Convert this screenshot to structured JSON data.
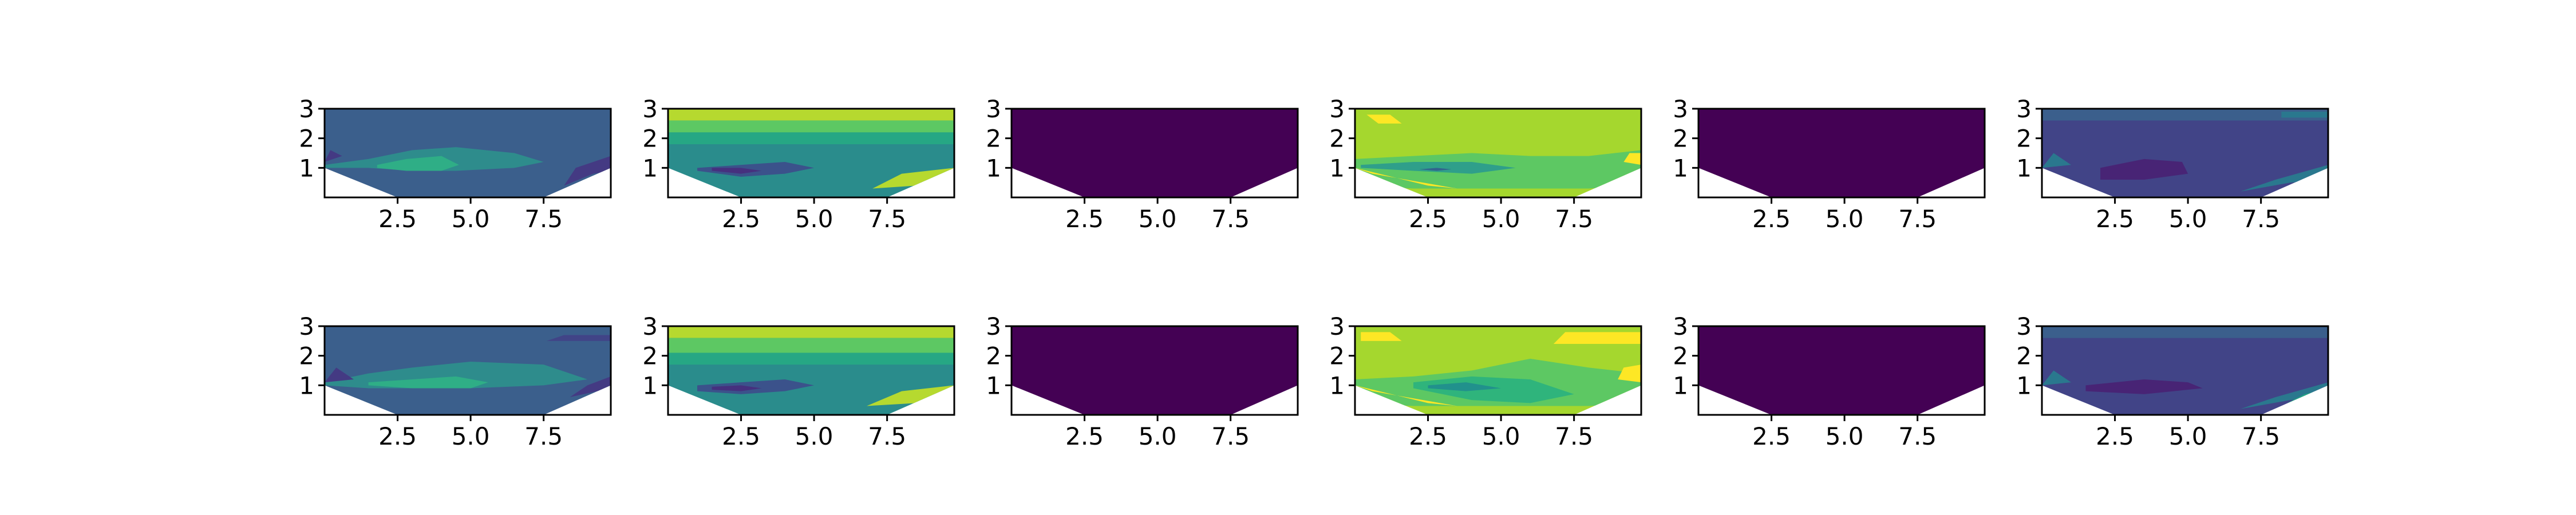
{
  "chart_data": {
    "type": "contour",
    "layout": {
      "rows": 2,
      "cols": 6
    },
    "colormap": [
      "#440154",
      "#414487",
      "#2a788e",
      "#22a884",
      "#7ad151",
      "#a6d820",
      "#fde725"
    ],
    "panels": [
      {
        "row": 0,
        "col": 0,
        "fill": "#3b5f8c",
        "bands": [
          {
            "x": [
              0,
              1.5,
              3,
              4.5,
              6.5,
              7.5,
              6.5,
              4.5,
              3,
              1.5,
              0
            ],
            "ylo": [
              1.0,
              1.0,
              0.9,
              0.9,
              1.0,
              1.2,
              1.5,
              1.7,
              1.6,
              1.3,
              1.1
            ],
            "color": "#2e8c8c"
          },
          {
            "x": [
              1.8,
              2.8,
              4.0,
              4.6,
              4.0,
              2.8,
              1.8
            ],
            "ylo": [
              1.0,
              0.9,
              0.9,
              1.1,
              1.4,
              1.3,
              1.1
            ],
            "color": "#2fae86"
          },
          {
            "x": [
              8.2,
              9.2,
              9.8,
              9.8,
              8.6
            ],
            "ylo": [
              0.4,
              0.8,
              0.9,
              1.4,
              1.0
            ],
            "color": "#443a83"
          },
          {
            "x": [
              0,
              0.6,
              0.2
            ],
            "ylo": [
              1.2,
              1.4,
              1.6
            ],
            "color": "#443a83"
          }
        ]
      },
      {
        "row": 0,
        "col": 1,
        "fill": "#2a8c8c",
        "bands": [
          {
            "x": [
              0,
              9.8,
              9.8,
              0
            ],
            "ylo": [
              2.6,
              2.6,
              3.0,
              3.0
            ],
            "color": "#b6d92f"
          },
          {
            "x": [
              0,
              9.8,
              9.8,
              0
            ],
            "ylo": [
              2.2,
              2.2,
              2.6,
              2.6
            ],
            "color": "#5dc863"
          },
          {
            "x": [
              0,
              9.8,
              9.8,
              0
            ],
            "ylo": [
              1.8,
              1.8,
              2.2,
              2.2
            ],
            "color": "#26a784"
          },
          {
            "x": [
              1.0,
              2.5,
              4.0,
              5.0,
              4.0,
              2.5,
              1.0
            ],
            "ylo": [
              0.9,
              0.7,
              0.8,
              1.0,
              1.2,
              1.1,
              1.0
            ],
            "color": "#3b528b"
          },
          {
            "x": [
              1.5,
              2.5,
              3.2,
              2.5,
              1.5
            ],
            "ylo": [
              0.9,
              0.8,
              0.9,
              1.0,
              1.0
            ],
            "color": "#46307e"
          },
          {
            "x": [
              7.0,
              8.5,
              9.8,
              9.8,
              8.0
            ],
            "ylo": [
              0.3,
              0.4,
              0.6,
              1.0,
              0.8
            ],
            "color": "#b6d92f"
          },
          {
            "x": [
              8.6,
              9.5,
              9.8,
              9.0
            ],
            "ylo": [
              0.2,
              0.4,
              0.7,
              0.6
            ],
            "color": "#fde725"
          }
        ]
      },
      {
        "row": 0,
        "col": 2,
        "fill": "#440154",
        "bands": []
      },
      {
        "row": 0,
        "col": 3,
        "fill": "#a5d72e",
        "bands": [
          {
            "x": [
              0,
              2.0,
              4.0,
              6.0,
              8.0,
              9.8,
              9.8,
              8.0,
              6.0,
              4.0,
              2.0,
              0
            ],
            "ylo": [
              0.4,
              0.3,
              0.3,
              0.3,
              0.3,
              0.4,
              1.6,
              1.4,
              1.4,
              1.5,
              1.4,
              1.3
            ],
            "color": "#5dc863"
          },
          {
            "x": [
              0.2,
              2.0,
              4.0,
              5.5,
              4.0,
              2.0,
              0.2
            ],
            "ylo": [
              1.0,
              0.9,
              0.8,
              1.0,
              1.2,
              1.2,
              1.1
            ],
            "color": "#2f9f8a"
          },
          {
            "x": [
              2.2,
              2.8,
              3.3,
              2.8
            ],
            "ylo": [
              0.95,
              0.9,
              0.95,
              1.0
            ],
            "color": "#33638d"
          },
          {
            "x": [
              0,
              2.5,
              3.5,
              0.6
            ],
            "ylo": [
              1.0,
              0.4,
              0.3,
              0.8
            ],
            "color": "#fde725"
          },
          {
            "x": [
              0.8,
              1.6,
              1.2,
              0.4
            ],
            "ylo": [
              2.5,
              2.5,
              2.8,
              2.8
            ],
            "color": "#fde725"
          },
          {
            "x": [
              9.2,
              9.8,
              9.8,
              9.4
            ],
            "ylo": [
              1.2,
              1.1,
              1.5,
              1.5
            ],
            "color": "#fde725"
          }
        ]
      },
      {
        "row": 0,
        "col": 4,
        "fill": "#440154",
        "bands": []
      },
      {
        "row": 0,
        "col": 5,
        "fill": "#414487",
        "bands": [
          {
            "x": [
              0,
              9.8,
              9.8,
              0
            ],
            "ylo": [
              2.6,
              2.6,
              3.0,
              3.0
            ],
            "color": "#3b5f8c"
          },
          {
            "x": [
              2.0,
              3.5,
              5.0,
              4.8,
              3.5,
              2.0
            ],
            "ylo": [
              0.6,
              0.6,
              0.8,
              1.2,
              1.3,
              1.0
            ],
            "color": "#482475"
          },
          {
            "x": [
              6.8,
              8.5,
              9.8,
              9.8,
              8.0
            ],
            "ylo": [
              0.2,
              0.5,
              0.6,
              1.1,
              0.6
            ],
            "color": "#2a788e"
          },
          {
            "x": [
              8.6,
              9.8,
              9.8,
              9.2
            ],
            "ylo": [
              0.4,
              0.6,
              0.9,
              0.7
            ],
            "color": "#22a884"
          },
          {
            "x": [
              8.2,
              9.8,
              9.8,
              8.2
            ],
            "ylo": [
              2.7,
              2.7,
              2.9,
              2.9
            ],
            "color": "#2a788e"
          },
          {
            "x": [
              0,
              1.0,
              0.4
            ],
            "ylo": [
              1.0,
              1.1,
              1.5
            ],
            "color": "#2a788e"
          }
        ]
      },
      {
        "row": 1,
        "col": 0,
        "fill": "#3b5f8c",
        "bands": [
          {
            "x": [
              0,
              1.5,
              3,
              5,
              7.5,
              9.0,
              7.5,
              5,
              3,
              1.5,
              0
            ],
            "ylo": [
              1.0,
              0.9,
              0.9,
              0.9,
              1.0,
              1.2,
              1.7,
              1.8,
              1.6,
              1.4,
              1.1
            ],
            "color": "#2e8c8c"
          },
          {
            "x": [
              1.5,
              3.0,
              5.0,
              5.6,
              4.5,
              3.0,
              1.5
            ],
            "ylo": [
              1.0,
              0.9,
              0.9,
              1.1,
              1.3,
              1.2,
              1.1
            ],
            "color": "#2fae86"
          },
          {
            "x": [
              7.6,
              9.8,
              9.8,
              8.2
            ],
            "ylo": [
              2.5,
              2.5,
              2.7,
              2.7
            ],
            "color": "#414487"
          },
          {
            "x": [
              8.4,
              9.8,
              9.8,
              9.0
            ],
            "ylo": [
              0.6,
              0.9,
              1.3,
              1.0
            ],
            "color": "#443a83"
          },
          {
            "x": [
              0,
              1.0,
              0.4
            ],
            "ylo": [
              1.1,
              1.2,
              1.6
            ],
            "color": "#443a83"
          }
        ]
      },
      {
        "row": 1,
        "col": 1,
        "fill": "#2a8c8c",
        "bands": [
          {
            "x": [
              0,
              9.8,
              9.8,
              0
            ],
            "ylo": [
              2.6,
              2.6,
              3.0,
              3.0
            ],
            "color": "#b6d92f"
          },
          {
            "x": [
              0,
              9.8,
              9.8,
              0
            ],
            "ylo": [
              2.1,
              2.1,
              2.6,
              2.6
            ],
            "color": "#5dc863"
          },
          {
            "x": [
              0,
              9.8,
              9.8,
              0
            ],
            "ylo": [
              1.7,
              1.7,
              2.1,
              2.1
            ],
            "color": "#26a784"
          },
          {
            "x": [
              1.0,
              2.5,
              4.0,
              5.0,
              4.0,
              2.5,
              1.0
            ],
            "ylo": [
              0.8,
              0.7,
              0.8,
              1.0,
              1.2,
              1.1,
              1.0
            ],
            "color": "#3b528b"
          },
          {
            "x": [
              1.5,
              2.5,
              3.2,
              2.5,
              1.5
            ],
            "ylo": [
              0.85,
              0.8,
              0.9,
              1.0,
              0.95
            ],
            "color": "#46307e"
          },
          {
            "x": [
              6.8,
              8.5,
              9.8,
              9.8,
              8.0
            ],
            "ylo": [
              0.3,
              0.4,
              0.6,
              1.0,
              0.8
            ],
            "color": "#b6d92f"
          },
          {
            "x": [
              8.6,
              9.5,
              9.8,
              9.0
            ],
            "ylo": [
              0.2,
              0.4,
              0.7,
              0.6
            ],
            "color": "#fde725"
          }
        ]
      },
      {
        "row": 1,
        "col": 2,
        "fill": "#440154",
        "bands": []
      },
      {
        "row": 1,
        "col": 3,
        "fill": "#a5d72e",
        "bands": [
          {
            "x": [
              0,
              2.0,
              4.0,
              6.0,
              8.0,
              9.8,
              9.8,
              8.0,
              6.0,
              4.0,
              2.0,
              0
            ],
            "ylo": [
              0.4,
              0.3,
              0.3,
              0.3,
              0.3,
              0.4,
              1.4,
              1.6,
              1.9,
              1.5,
              1.3,
              1.2
            ],
            "color": "#5dc863"
          },
          {
            "x": [
              2.0,
              4.0,
              6.0,
              7.5,
              6.0,
              4.0,
              2.0
            ],
            "ylo": [
              0.9,
              0.5,
              0.4,
              0.7,
              1.2,
              1.3,
              1.1
            ],
            "color": "#2fb47c"
          },
          {
            "x": [
              2.5,
              3.8,
              5.0,
              3.8,
              2.5
            ],
            "ylo": [
              0.9,
              0.8,
              0.9,
              1.1,
              1.0
            ],
            "color": "#21918c"
          },
          {
            "x": [
              0,
              2.5,
              3.5,
              0.6
            ],
            "ylo": [
              1.0,
              0.4,
              0.3,
              0.8
            ],
            "color": "#fde725"
          },
          {
            "x": [
              0.2,
              1.6,
              1.2,
              0.2
            ],
            "ylo": [
              2.5,
              2.5,
              2.8,
              2.8
            ],
            "color": "#fde725"
          },
          {
            "x": [
              6.8,
              9.8,
              9.8,
              7.2
            ],
            "ylo": [
              2.4,
              2.4,
              2.8,
              2.8
            ],
            "color": "#fde725"
          },
          {
            "x": [
              9.0,
              9.8,
              9.8,
              9.2
            ],
            "ylo": [
              1.2,
              1.1,
              1.7,
              1.6
            ],
            "color": "#fde725"
          }
        ]
      },
      {
        "row": 1,
        "col": 4,
        "fill": "#440154",
        "bands": []
      },
      {
        "row": 1,
        "col": 5,
        "fill": "#414487",
        "bands": [
          {
            "x": [
              0,
              9.8,
              9.8,
              0
            ],
            "ylo": [
              2.6,
              2.6,
              3.0,
              3.0
            ],
            "color": "#3b5f8c"
          },
          {
            "x": [
              1.5,
              3.5,
              5.5,
              5.0,
              3.5,
              1.5
            ],
            "ylo": [
              0.8,
              0.7,
              0.9,
              1.1,
              1.2,
              1.0
            ],
            "color": "#482475"
          },
          {
            "x": [
              6.8,
              8.5,
              9.8,
              9.8,
              8.0
            ],
            "ylo": [
              0.2,
              0.5,
              0.6,
              1.1,
              0.6
            ],
            "color": "#2a788e"
          },
          {
            "x": [
              8.4,
              9.8,
              9.8,
              9.0
            ],
            "ylo": [
              0.4,
              0.6,
              0.9,
              0.7
            ],
            "color": "#22a884"
          },
          {
            "x": [
              8.4,
              9.8,
              9.8,
              9.0
            ],
            "ylo": [
              0.15,
              0.4,
              0.55,
              0.3
            ],
            "color": "#7ad151"
          },
          {
            "x": [
              0,
              1.0,
              0.4
            ],
            "ylo": [
              1.0,
              1.1,
              1.5
            ],
            "color": "#2a788e"
          }
        ]
      }
    ],
    "xlim": [
      0,
      9.8
    ],
    "ylim": [
      0,
      3
    ],
    "xticks": [
      2.5,
      5.0,
      7.5
    ],
    "yticks": [
      1,
      2,
      3
    ],
    "xtick_labels": [
      "2.5",
      "5.0",
      "7.5"
    ],
    "ytick_labels": [
      "1",
      "2",
      "3"
    ],
    "domain_mask": {
      "x": [
        0,
        2.5,
        7.5,
        9.8
      ],
      "y": [
        1.0,
        0.0,
        0.0,
        1.0
      ]
    },
    "grid": false,
    "legend": "none"
  }
}
